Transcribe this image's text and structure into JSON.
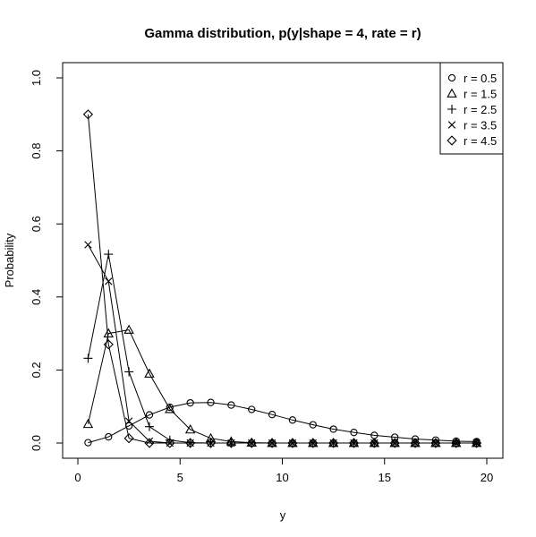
{
  "chart_data": {
    "type": "line",
    "title": "Gamma distribution, p(y|shape = 4, rate = r)",
    "xlabel": "y",
    "ylabel": "Probability",
    "xlim": [
      0,
      20
    ],
    "ylim": [
      0,
      1.0
    ],
    "x_ticks": [
      "0",
      "5",
      "10",
      "15",
      "20"
    ],
    "y_ticks": [
      "0.0",
      "0.2",
      "0.4",
      "0.6",
      "0.8",
      "1.0"
    ],
    "grid": false,
    "legend_position": "top-right",
    "x": [
      0.5,
      1.5,
      2.5,
      3.5,
      4.5,
      5.5,
      6.5,
      7.5,
      8.5,
      9.5,
      10.5,
      11.5,
      12.5,
      13.5,
      14.5,
      15.5,
      16.5,
      17.5,
      18.5,
      19.5
    ],
    "series": [
      {
        "name": "r = 0.5",
        "marker": "circle",
        "values": [
          0.001,
          0.017,
          0.047,
          0.077,
          0.098,
          0.11,
          0.111,
          0.104,
          0.092,
          0.078,
          0.063,
          0.05,
          0.038,
          0.029,
          0.021,
          0.016,
          0.011,
          0.008,
          0.005,
          0.004
        ]
      },
      {
        "name": "r = 1.5",
        "marker": "triangle",
        "values": [
          0.052,
          0.3,
          0.31,
          0.19,
          0.093,
          0.037,
          0.013,
          0.004,
          0.001,
          0.0,
          0.0,
          0.0,
          0.0,
          0.0,
          0.0,
          0.0,
          0.0,
          0.0,
          0.0,
          0.0
        ]
      },
      {
        "name": "r = 2.5",
        "marker": "plus",
        "values": [
          0.232,
          0.517,
          0.195,
          0.045,
          0.008,
          0.001,
          0.0,
          0.0,
          0.0,
          0.0,
          0.0,
          0.0,
          0.0,
          0.0,
          0.0,
          0.0,
          0.0,
          0.0,
          0.0,
          0.0
        ]
      },
      {
        "name": "r = 3.5",
        "marker": "cross",
        "values": [
          0.543,
          0.443,
          0.06,
          0.005,
          0.0,
          0.0,
          0.0,
          0.0,
          0.0,
          0.0,
          0.0,
          0.0,
          0.0,
          0.0,
          0.0,
          0.0,
          0.0,
          0.0,
          0.0,
          0.0
        ]
      },
      {
        "name": "r = 4.5",
        "marker": "diamond",
        "values": [
          0.9,
          0.27,
          0.013,
          0.0,
          0.0,
          0.0,
          0.0,
          0.0,
          0.0,
          0.0,
          0.0,
          0.0,
          0.0,
          0.0,
          0.0,
          0.0,
          0.0,
          0.0,
          0.0,
          0.0
        ]
      }
    ]
  }
}
